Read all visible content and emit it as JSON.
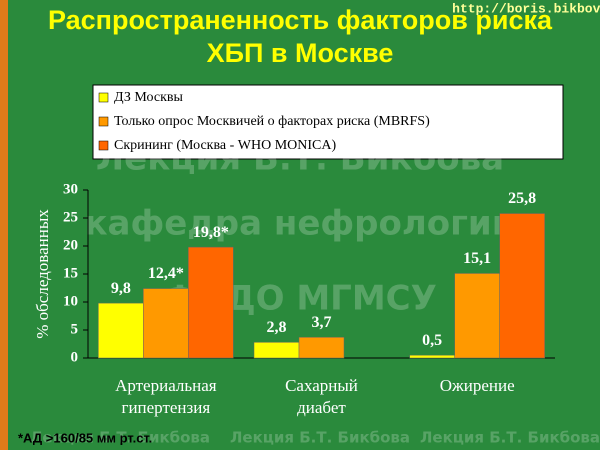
{
  "chart_data": {
    "type": "bar",
    "title": "Распространенность факторов риска ХБП в Москве",
    "url": "http://boris.bikbov.ru",
    "y_label": "% обследованных",
    "categories": [
      "Артериальная гипертензия",
      "Сахарный диабет",
      "Ожирение"
    ],
    "series": [
      {
        "name": "ДЗ Москвы",
        "color": "#ffff00",
        "values": [
          9.8,
          2.8,
          0.5
        ],
        "value_labels": [
          "9,8",
          "2,8",
          "0,5"
        ]
      },
      {
        "name": "Только опрос Москвичей о факторах риска (MBRFS)",
        "color": "#ff9900",
        "values": [
          12.4,
          3.7,
          15.1
        ],
        "value_labels": [
          "12,4*",
          "3,7",
          "15,1"
        ]
      },
      {
        "name": "Скрининг (Москва - WHO MONICA)",
        "color": "#ff6600",
        "values": [
          19.8,
          null,
          25.8
        ],
        "value_labels": [
          "19,8*",
          null,
          "25,8"
        ]
      }
    ],
    "ylim": [
      0,
      30
    ],
    "yticks": [
      0,
      5,
      10,
      15,
      20,
      25,
      30
    ],
    "grid": false,
    "footnote": "*АД >160/85 мм рт.ст.",
    "watermarks": [
      "Лекция Б.Т. Бикбова",
      "кафедра нефрологии",
      "ФПДО МГМСУ",
      "Лекция Б.Т. Бикбова",
      "Лекция Б.Т. Бикбова",
      "Лекция Б.Т. Бикбова"
    ]
  }
}
